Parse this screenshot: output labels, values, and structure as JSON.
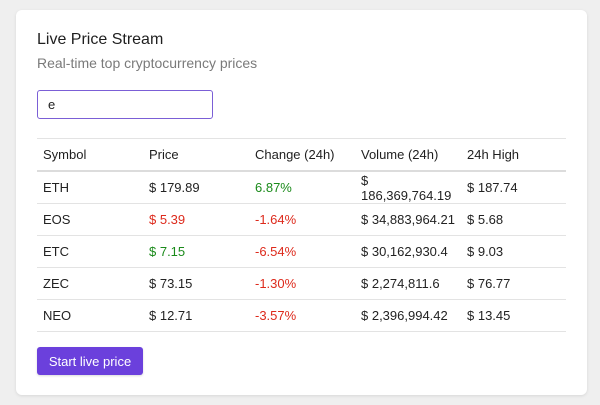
{
  "card": {
    "title": "Live Price Stream",
    "subtitle": "Real-time top cryptocurrency prices"
  },
  "search": {
    "value": "e",
    "placeholder": ""
  },
  "table": {
    "headers": [
      "Symbol",
      "Price",
      "Change (24h)",
      "Volume (24h)",
      "24h High"
    ],
    "rows": [
      {
        "symbol": "ETH",
        "price": "$ 179.89",
        "price_trend": "neutral",
        "change": "6.87%",
        "change_trend": "up",
        "volume": "$ 186,369,764.19",
        "high": "$ 187.74"
      },
      {
        "symbol": "EOS",
        "price": "$ 5.39",
        "price_trend": "down",
        "change": "-1.64%",
        "change_trend": "down",
        "volume": "$ 34,883,964.21",
        "high": "$ 5.68"
      },
      {
        "symbol": "ETC",
        "price": "$ 7.15",
        "price_trend": "up",
        "change": "-6.54%",
        "change_trend": "down",
        "volume": "$ 30,162,930.4",
        "high": "$ 9.03"
      },
      {
        "symbol": "ZEC",
        "price": "$ 73.15",
        "price_trend": "neutral",
        "change": "-1.30%",
        "change_trend": "down",
        "volume": "$ 2,274,811.6",
        "high": "$ 76.77"
      },
      {
        "symbol": "NEO",
        "price": "$ 12.71",
        "price_trend": "neutral",
        "change": "-3.57%",
        "change_trend": "down",
        "volume": "$ 2,396,994.42",
        "high": "$ 13.45"
      }
    ]
  },
  "actions": {
    "start_label": "Start live price"
  },
  "colors": {
    "accent": "#6b40dc",
    "input_border": "#7b5fd6",
    "positive": "#1a8a1a",
    "negative": "#dd2a1c"
  }
}
